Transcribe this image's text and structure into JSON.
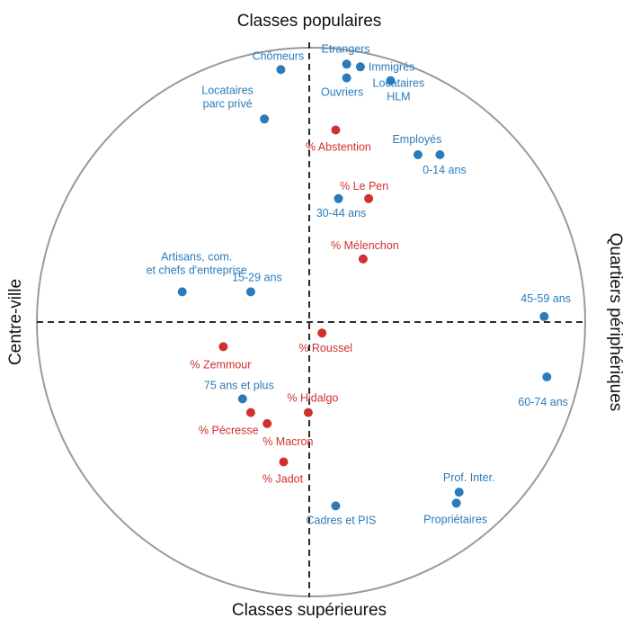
{
  "chart_data": {
    "type": "scatter",
    "title": "",
    "xlim": [
      -1,
      1
    ],
    "ylim": [
      -1,
      1
    ],
    "grid": false,
    "axis_titles": {
      "top": "Classes populaires",
      "bottom": "Classes supérieures",
      "left": "Centre-ville",
      "right": "Quartiers périphériques"
    },
    "colors": {
      "blue": "#2b7bba",
      "red": "#d03030",
      "circle": "#9a9a9a",
      "axis": "#111111"
    },
    "series": [
      {
        "name": "",
        "color": "#2b7bba",
        "points": [
          {
            "label": [
              "Chômeurs"
            ],
            "x": -0.11,
            "y": 0.92
          },
          {
            "label": [
              "Etrangers"
            ],
            "x": 0.13,
            "y": 0.94
          },
          {
            "label": [
              "Immigrés"
            ],
            "x": 0.18,
            "y": 0.93
          },
          {
            "label": [
              "Ouvriers"
            ],
            "x": 0.13,
            "y": 0.89
          },
          {
            "label": [
              "Locataires",
              "HLM"
            ],
            "x": 0.29,
            "y": 0.88
          },
          {
            "label": [
              "Locataires",
              "parc privé"
            ],
            "x": -0.17,
            "y": 0.74
          },
          {
            "label": [
              "Employés"
            ],
            "x": 0.39,
            "y": 0.61
          },
          {
            "label": [
              "0-14 ans"
            ],
            "x": 0.47,
            "y": 0.61
          },
          {
            "label": [
              "30-44 ans"
            ],
            "x": 0.1,
            "y": 0.45
          },
          {
            "label": [
              "Artisans, com.",
              "et chefs d'entreprise"
            ],
            "x": -0.47,
            "y": 0.11
          },
          {
            "label": [
              "15-29 ans"
            ],
            "x": -0.22,
            "y": 0.11
          },
          {
            "label": [
              "45-59 ans"
            ],
            "x": 0.85,
            "y": 0.02
          },
          {
            "label": [
              "60-74 ans"
            ],
            "x": 0.86,
            "y": -0.2
          },
          {
            "label": [
              "75 ans et plus"
            ],
            "x": -0.25,
            "y": -0.28
          },
          {
            "label": [
              "Prof. Inter."
            ],
            "x": 0.54,
            "y": -0.62
          },
          {
            "label": [
              "Propriétaires"
            ],
            "x": 0.53,
            "y": -0.66
          },
          {
            "label": [
              "Cadres et PIS"
            ],
            "x": 0.09,
            "y": -0.67
          }
        ]
      },
      {
        "name": "",
        "color": "#d03030",
        "points": [
          {
            "label": [
              "% Abstention"
            ],
            "x": 0.09,
            "y": 0.7
          },
          {
            "label": [
              "% Le Pen"
            ],
            "x": 0.21,
            "y": 0.45
          },
          {
            "label": [
              "% Mélenchon"
            ],
            "x": 0.19,
            "y": 0.23
          },
          {
            "label": [
              "% Roussel"
            ],
            "x": 0.04,
            "y": -0.04
          },
          {
            "label": [
              "% Zemmour"
            ],
            "x": -0.32,
            "y": -0.09
          },
          {
            "label": [
              "% Hidalgo"
            ],
            "x": -0.01,
            "y": -0.33
          },
          {
            "label": [
              "% Pécresse"
            ],
            "x": -0.22,
            "y": -0.33
          },
          {
            "label": [
              "% Macron"
            ],
            "x": -0.16,
            "y": -0.37
          },
          {
            "label": [
              "% Jadot"
            ],
            "x": -0.1,
            "y": -0.51
          }
        ]
      }
    ]
  }
}
